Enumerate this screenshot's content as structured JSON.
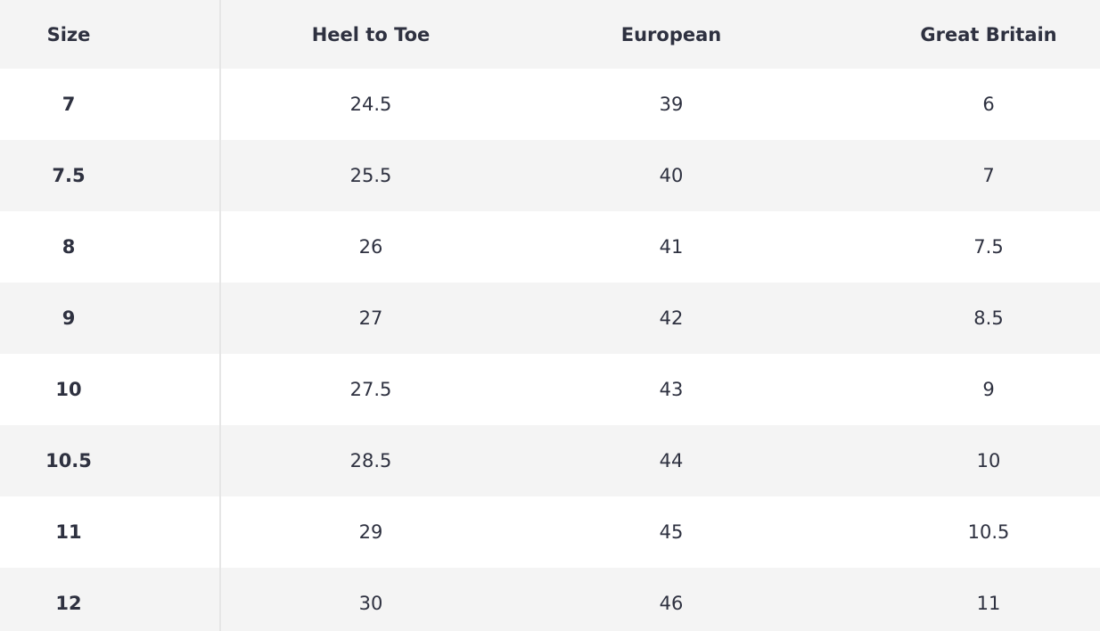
{
  "table": {
    "header": [
      "Size",
      "Heel to Toe",
      "European",
      "Great Britain"
    ],
    "rows": [
      [
        "7",
        "24.5",
        "39",
        "6"
      ],
      [
        "7.5",
        "25.5",
        "40",
        "7"
      ],
      [
        "8",
        "26",
        "41",
        "7.5"
      ],
      [
        "9",
        "27",
        "42",
        "8.5"
      ],
      [
        "10",
        "27.5",
        "43",
        "9"
      ],
      [
        "10.5",
        "28.5",
        "44",
        "10"
      ],
      [
        "11",
        "29",
        "45",
        "10.5"
      ],
      [
        "12",
        "30",
        "46",
        "11"
      ]
    ]
  }
}
